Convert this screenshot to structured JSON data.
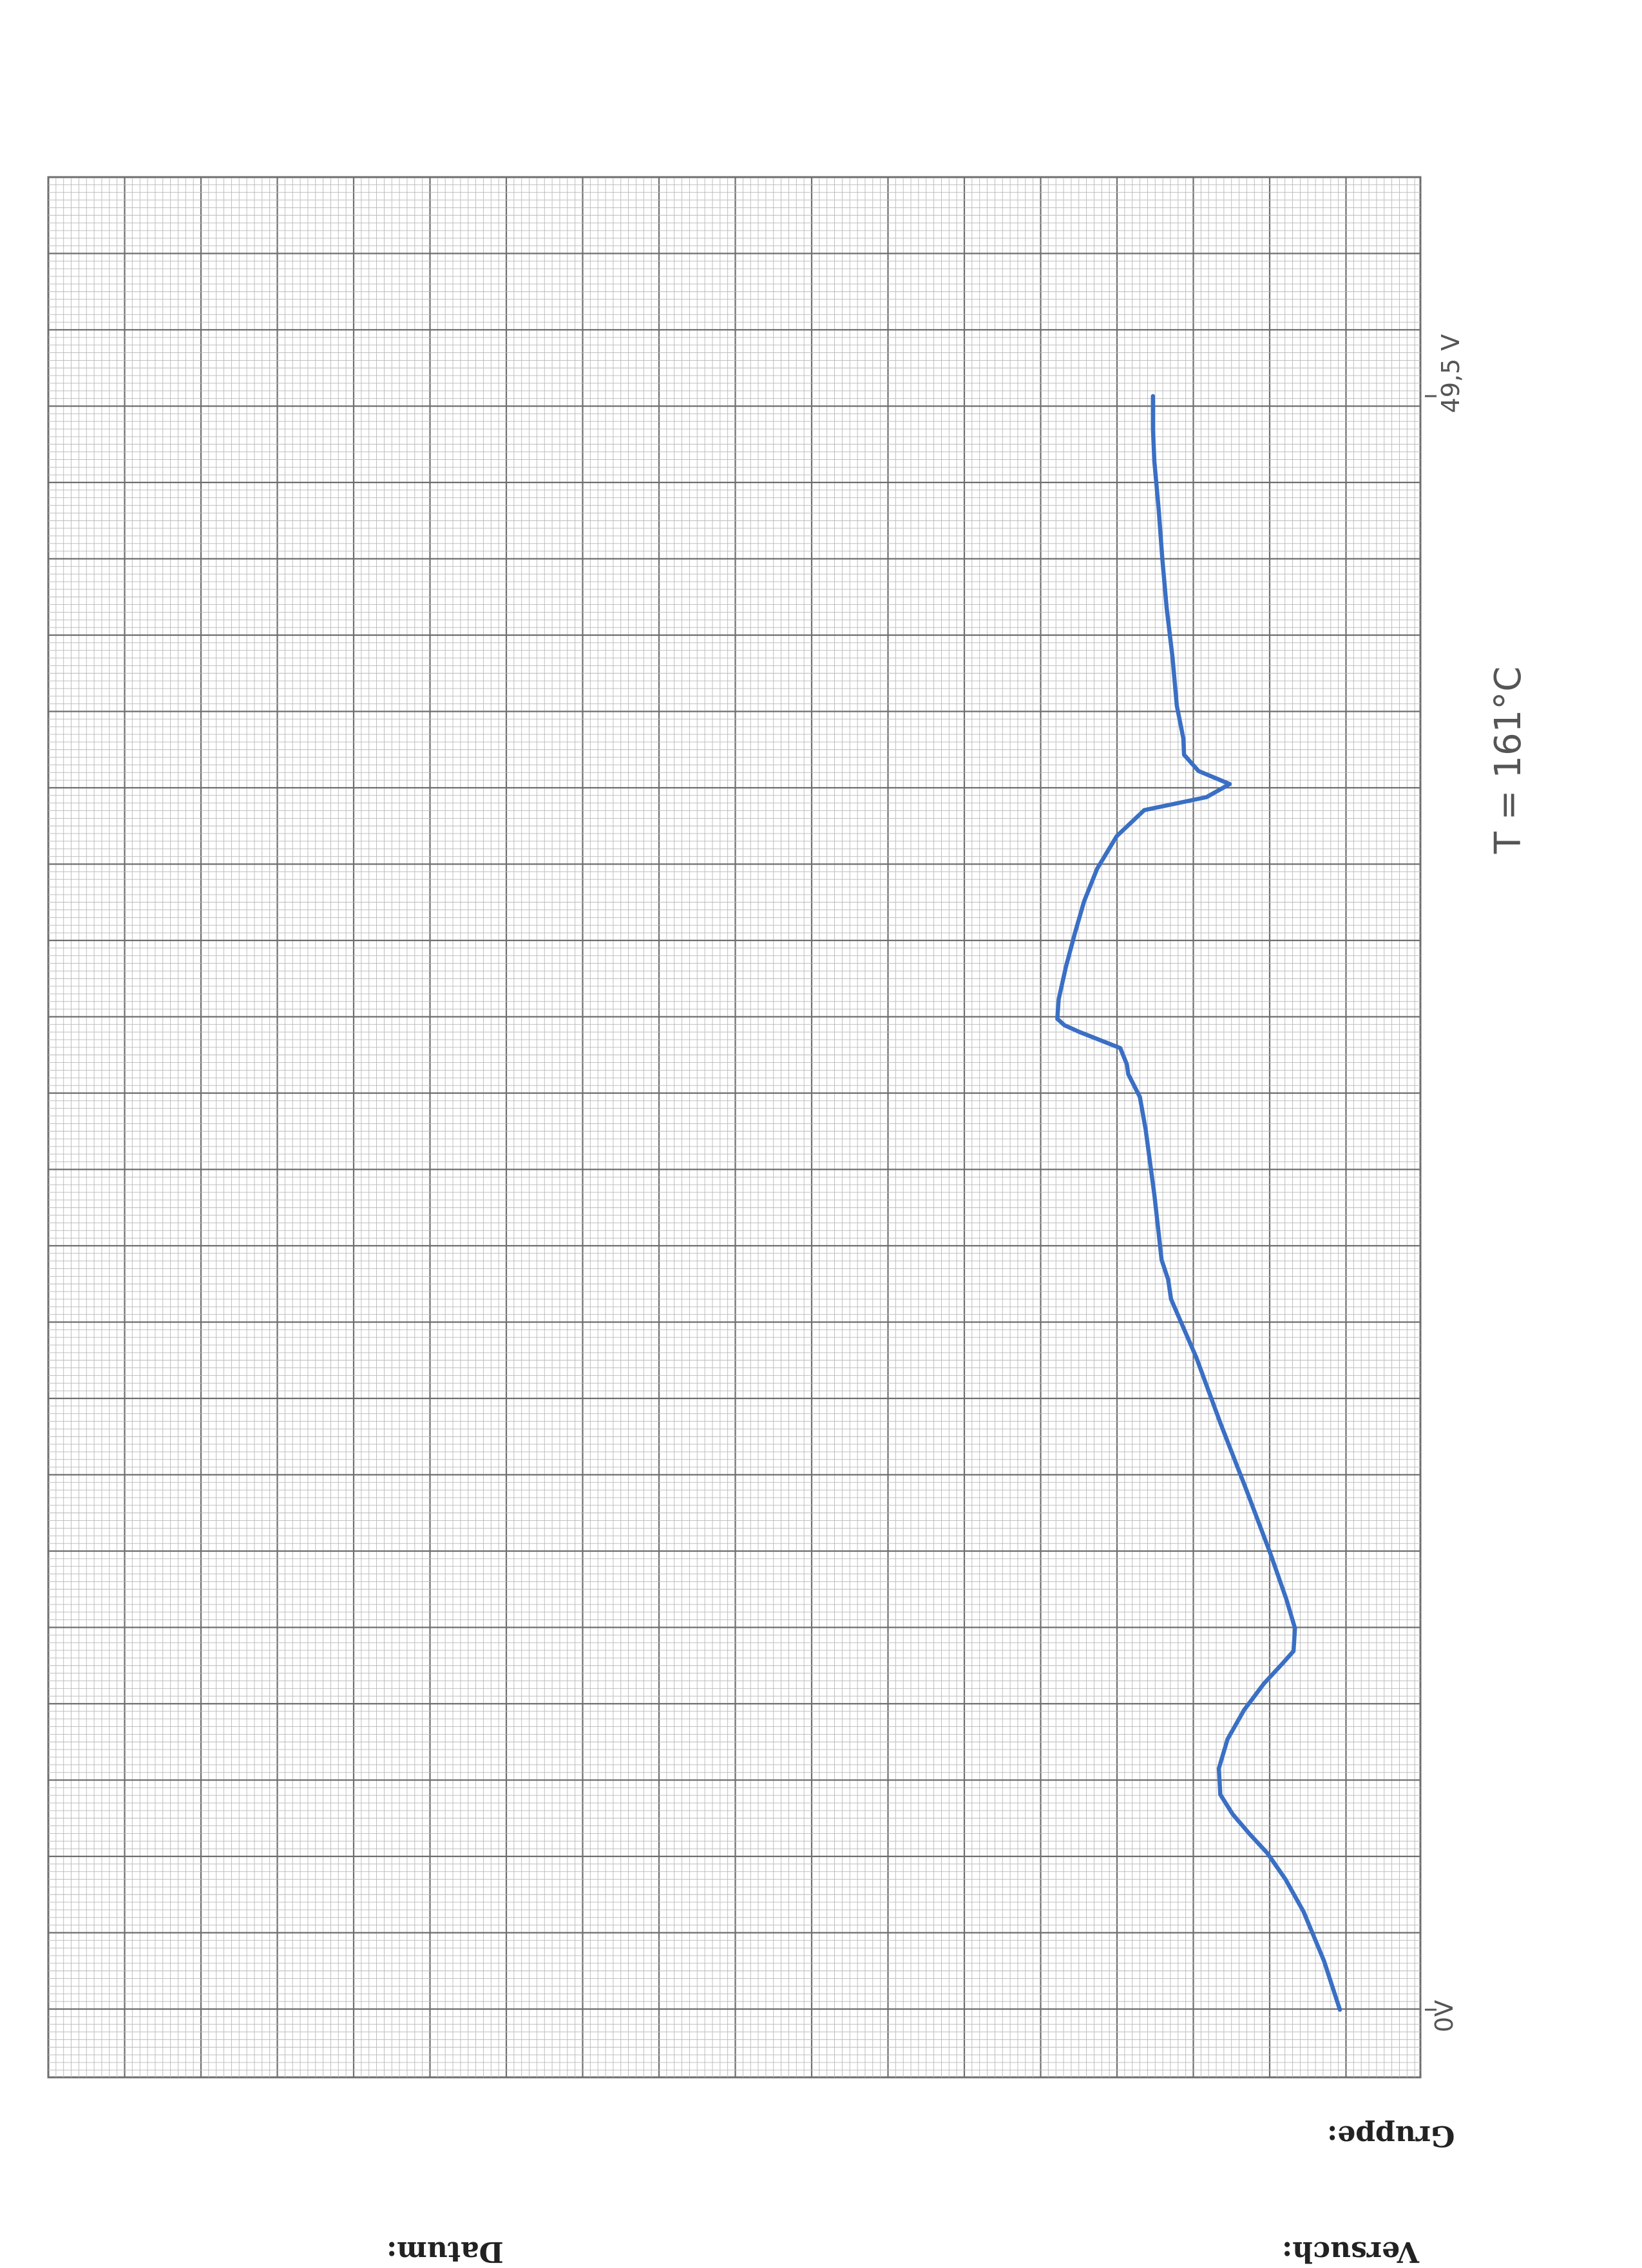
{
  "form": {
    "versuch_label": "Versuch:",
    "datum_label": "Datum:",
    "gruppe_label": "Gruppe:"
  },
  "annotations": {
    "temperature": "T = 161°C",
    "scale_top": "49,5 V",
    "scale_zero": "0V"
  },
  "colors": {
    "trace": "#3a6fc4",
    "grid_major": "#6e6e6e",
    "grid_minor": "#b8b8b8",
    "paper": "#ffffff"
  },
  "chart_data": {
    "type": "line",
    "title": "",
    "xlabel": "",
    "ylabel": "",
    "xlim": [
      0,
      49.5
    ],
    "ylim": [
      0,
      100
    ],
    "grid": true,
    "legend": "none",
    "series": [
      {
        "name": "",
        "points": [
          [
            0.0,
            0.0
          ],
          [
            1.5,
            2.2
          ],
          [
            3.0,
            5.0
          ],
          [
            4.0,
            7.5
          ],
          [
            4.8,
            10.0
          ],
          [
            5.4,
            12.5
          ],
          [
            6.0,
            14.8
          ],
          [
            6.6,
            16.5
          ],
          [
            7.4,
            16.7
          ],
          [
            8.3,
            15.5
          ],
          [
            9.2,
            13.2
          ],
          [
            10.0,
            10.5
          ],
          [
            10.6,
            8.0
          ],
          [
            11.0,
            6.4
          ],
          [
            11.7,
            6.2
          ],
          [
            12.6,
            7.4
          ],
          [
            14.0,
            9.6
          ],
          [
            16.0,
            13.0
          ],
          [
            18.0,
            16.5
          ],
          [
            20.0,
            19.8
          ],
          [
            21.8,
            23.3
          ],
          [
            22.4,
            23.7
          ],
          [
            23.0,
            24.6
          ],
          [
            25.0,
            25.6
          ],
          [
            27.0,
            26.8
          ],
          [
            28.0,
            27.6
          ],
          [
            28.7,
            29.2
          ],
          [
            29.0,
            29.4
          ],
          [
            29.5,
            30.3
          ],
          [
            30.0,
            36.0
          ],
          [
            30.2,
            38.0
          ],
          [
            30.4,
            39.0
          ],
          [
            31.0,
            38.8
          ],
          [
            32.0,
            37.8
          ],
          [
            33.0,
            36.6
          ],
          [
            34.0,
            35.3
          ],
          [
            35.0,
            33.5
          ],
          [
            36.0,
            30.8
          ],
          [
            36.8,
            27.0
          ],
          [
            37.2,
            18.4
          ],
          [
            37.6,
            15.2
          ],
          [
            38.0,
            19.5
          ],
          [
            38.5,
            21.5
          ],
          [
            39.0,
            21.6
          ],
          [
            40.0,
            22.5
          ],
          [
            41.5,
            23.1
          ],
          [
            43.0,
            23.9
          ],
          [
            44.5,
            24.5
          ],
          [
            46.0,
            25.0
          ],
          [
            47.5,
            25.6
          ],
          [
            48.5,
            25.8
          ],
          [
            49.5,
            25.8
          ]
        ]
      }
    ]
  }
}
